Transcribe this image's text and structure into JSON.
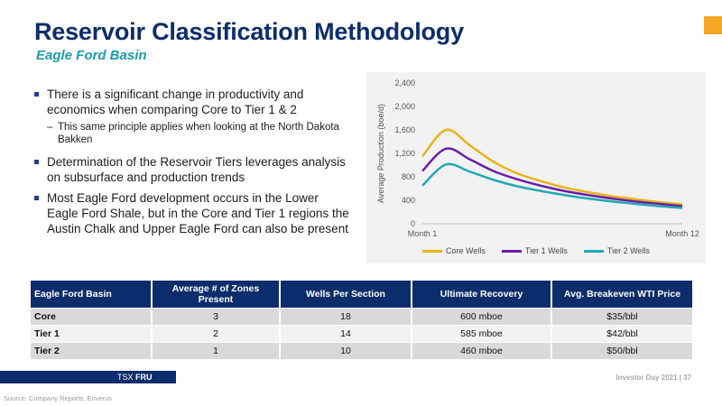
{
  "header": {
    "title": "Reservoir Classification Methodology",
    "subtitle": "Eagle Ford Basin"
  },
  "bullets": [
    {
      "text": "There is a significant change in productivity and economics when comparing Core to Tier 1 & 2"
    },
    {
      "text": "Determination of the Reservoir Tiers leverages analysis on subsurface and production trends"
    },
    {
      "text": "Most Eagle Ford development occurs in the Lower Eagle Ford Shale, but in the Core and Tier 1 regions the Austin Chalk and Upper Eagle Ford can also be present"
    }
  ],
  "sub_bullet": {
    "marker": "–",
    "text": "This same principle applies when looking at the North Dakota Bakken"
  },
  "chart_data": {
    "type": "line",
    "title": "",
    "xlabel": "",
    "ylabel": "Average Production (boe/d)",
    "x": [
      1,
      2,
      3,
      4,
      5,
      6,
      7,
      8,
      9,
      10,
      11,
      12
    ],
    "x_tick_labels": [
      "Month 1",
      "Month 12"
    ],
    "ylim": [
      0,
      2400
    ],
    "y_ticks": [
      0,
      400,
      800,
      1200,
      1600,
      2000,
      2400
    ],
    "y_tick_labels": [
      "0",
      "400",
      "800",
      "1,200",
      "1,600",
      "2,000",
      "2,400"
    ],
    "grid": false,
    "legend": "bottom",
    "series": [
      {
        "name": "Core Wells",
        "color": "#e8b318",
        "values": [
          1150,
          1600,
          1340,
          1060,
          860,
          730,
          620,
          540,
          470,
          420,
          370,
          330
        ]
      },
      {
        "name": "Tier 1 Wells",
        "color": "#6a1ea8",
        "values": [
          900,
          1280,
          1100,
          900,
          760,
          650,
          560,
          490,
          430,
          380,
          340,
          300
        ]
      },
      {
        "name": "Tier 2 Wells",
        "color": "#22a8b4",
        "values": [
          650,
          1010,
          890,
          750,
          640,
          560,
          490,
          430,
          380,
          340,
          300,
          270
        ]
      }
    ]
  },
  "table": {
    "headers": [
      "Eagle Ford Basin",
      "Average # of Zones Present",
      "Wells Per Section",
      "Ultimate Recovery",
      "Avg. Breakeven WTI Price"
    ],
    "rows": [
      [
        "Core",
        "3",
        "18",
        "600 mboe",
        "$35/bbl"
      ],
      [
        "Tier 1",
        "2",
        "14",
        "585 mboe",
        "$42/bbl"
      ],
      [
        "Tier 2",
        "1",
        "10",
        "460 mboe",
        "$50/bbl"
      ]
    ]
  },
  "footer": {
    "ticker_prefix": "TSX",
    "ticker": "FRU",
    "page": "Investor Day 2021 | 37",
    "source": "Source: Company Reports, Enverus"
  },
  "colors": {
    "navy": "#0c2d6b",
    "teal": "#1a9bb0",
    "orange": "#f5a623"
  }
}
